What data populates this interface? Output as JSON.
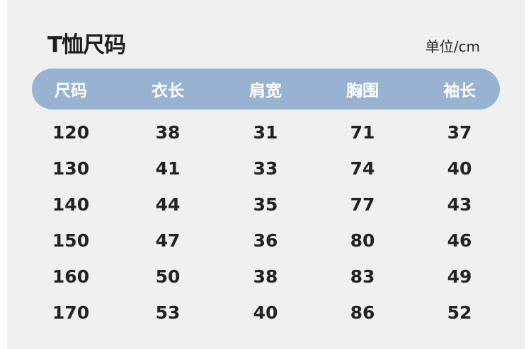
{
  "title": "T恤尺码",
  "unit": "单位/cm",
  "colors": {
    "header_bg": "#98b3d1",
    "panel_bg": "#f0f0f0"
  },
  "columns": [
    "尺码",
    "衣长",
    "肩宽",
    "胸围",
    "袖长"
  ],
  "rows": [
    [
      "120",
      "38",
      "31",
      "71",
      "37"
    ],
    [
      "130",
      "41",
      "33",
      "74",
      "40"
    ],
    [
      "140",
      "44",
      "35",
      "77",
      "43"
    ],
    [
      "150",
      "47",
      "36",
      "80",
      "46"
    ],
    [
      "160",
      "50",
      "38",
      "83",
      "49"
    ],
    [
      "170",
      "53",
      "40",
      "86",
      "52"
    ]
  ]
}
